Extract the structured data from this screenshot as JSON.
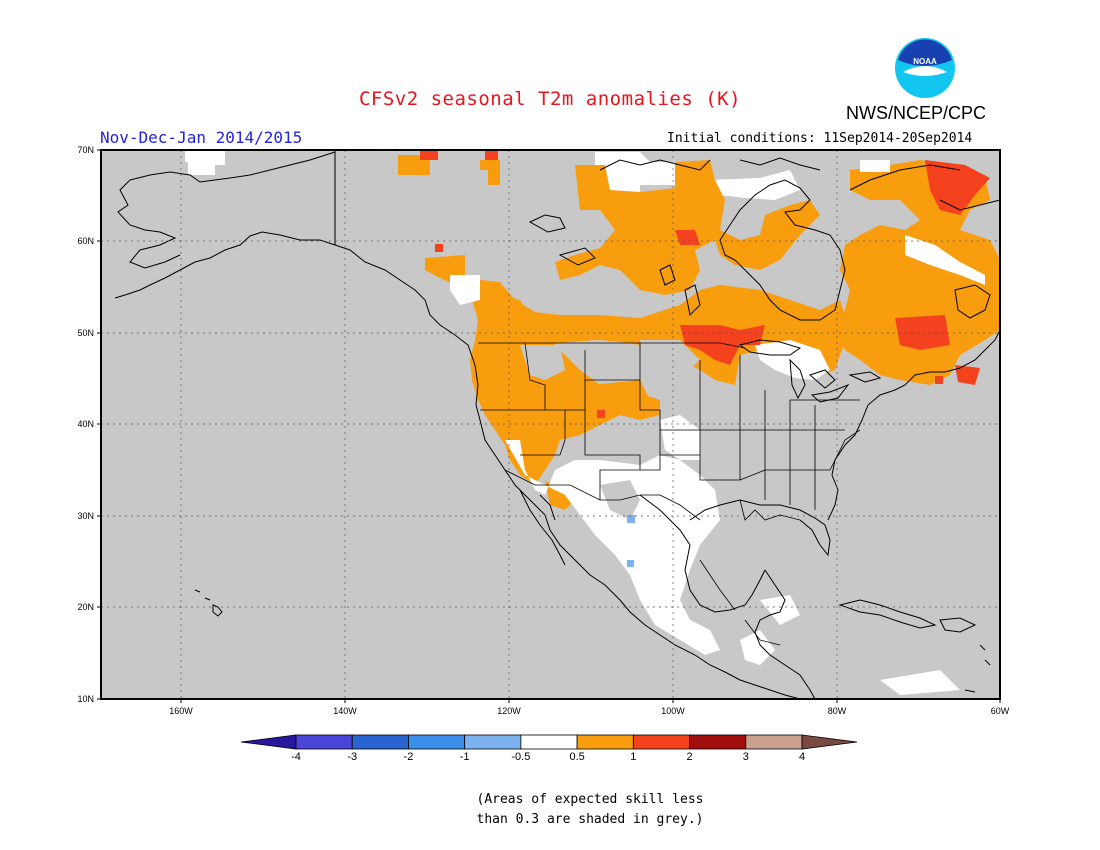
{
  "title": "CFSv2 seasonal T2m anomalies (K)",
  "agency": "NWS/NCEP/CPC",
  "logo": {
    "text": "NOAA",
    "colors": {
      "outer": "#12c6f0",
      "inner": "#1740b0",
      "gull": "#ffffff"
    }
  },
  "season_label": "Nov-Dec-Jan 2014/2015",
  "initial_conditions": "Initial conditions: 11Sep2014-20Sep2014",
  "map": {
    "background": "#c8c8c8",
    "lat_labels": [
      "70N",
      "60N",
      "50N",
      "40N",
      "30N",
      "20N",
      "10N"
    ],
    "lon_labels": [
      "160W",
      "140W",
      "120W",
      "100W",
      "80W",
      "60W"
    ],
    "colors": {
      "warm05": "#f89e0e",
      "warm1": "#f5421e",
      "near0": "#ffffff",
      "cool": "#7cb3ef",
      "grey": "#c8c8c8"
    }
  },
  "colorbar": {
    "labels": [
      "-4",
      "-3",
      "-2",
      "-1",
      "-0.5",
      "0.5",
      "1",
      "2",
      "3",
      "4"
    ],
    "colors": [
      "#2a17a0",
      "#4a44d8",
      "#2a64d0",
      "#3c8fea",
      "#7cb3ef",
      "#ffffff",
      "#f89e0e",
      "#f5421e",
      "#a00e0e",
      "#c9a090",
      "#7a4a40"
    ]
  },
  "note_lines": [
    "(Areas of expected skill less",
    "than 0.3 are shaded in grey.)"
  ]
}
